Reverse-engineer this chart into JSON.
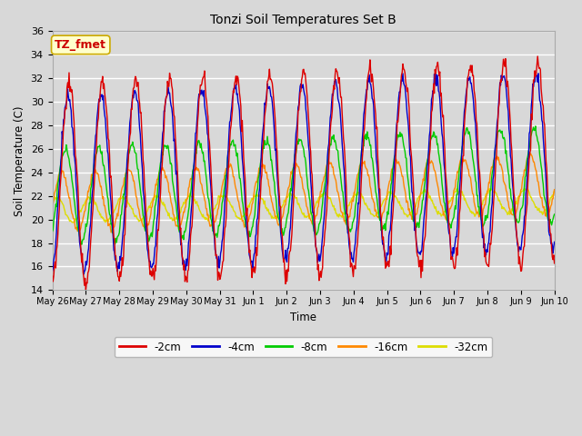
{
  "title": "Tonzi Soil Temperatures Set B",
  "xlabel": "Time",
  "ylabel": "Soil Temperature (C)",
  "annotation": "TZ_fmet",
  "ylim": [
    14,
    36
  ],
  "yticks": [
    14,
    16,
    18,
    20,
    22,
    24,
    26,
    28,
    30,
    32,
    34,
    36
  ],
  "x_tick_labels": [
    "May 26",
    "May 27",
    "May 28",
    "May 29",
    "May 30",
    "May 31",
    "Jun 1",
    "Jun 2",
    "Jun 3",
    "Jun 4",
    "Jun 5",
    "Jun 6",
    "Jun 7",
    "Jun 8",
    "Jun 9",
    "Jun 10"
  ],
  "colors": {
    "-2cm": "#dd0000",
    "-4cm": "#0000cc",
    "-8cm": "#00cc00",
    "-16cm": "#ff8800",
    "-32cm": "#dddd00"
  },
  "legend_labels": [
    "-2cm",
    "-4cm",
    "-8cm",
    "-16cm",
    "-32cm"
  ],
  "background_color": "#d8d8d8",
  "plot_bg_color": "#d8d8d8",
  "grid_color": "#ffffff",
  "n_days": 15,
  "pts_per_day": 48
}
